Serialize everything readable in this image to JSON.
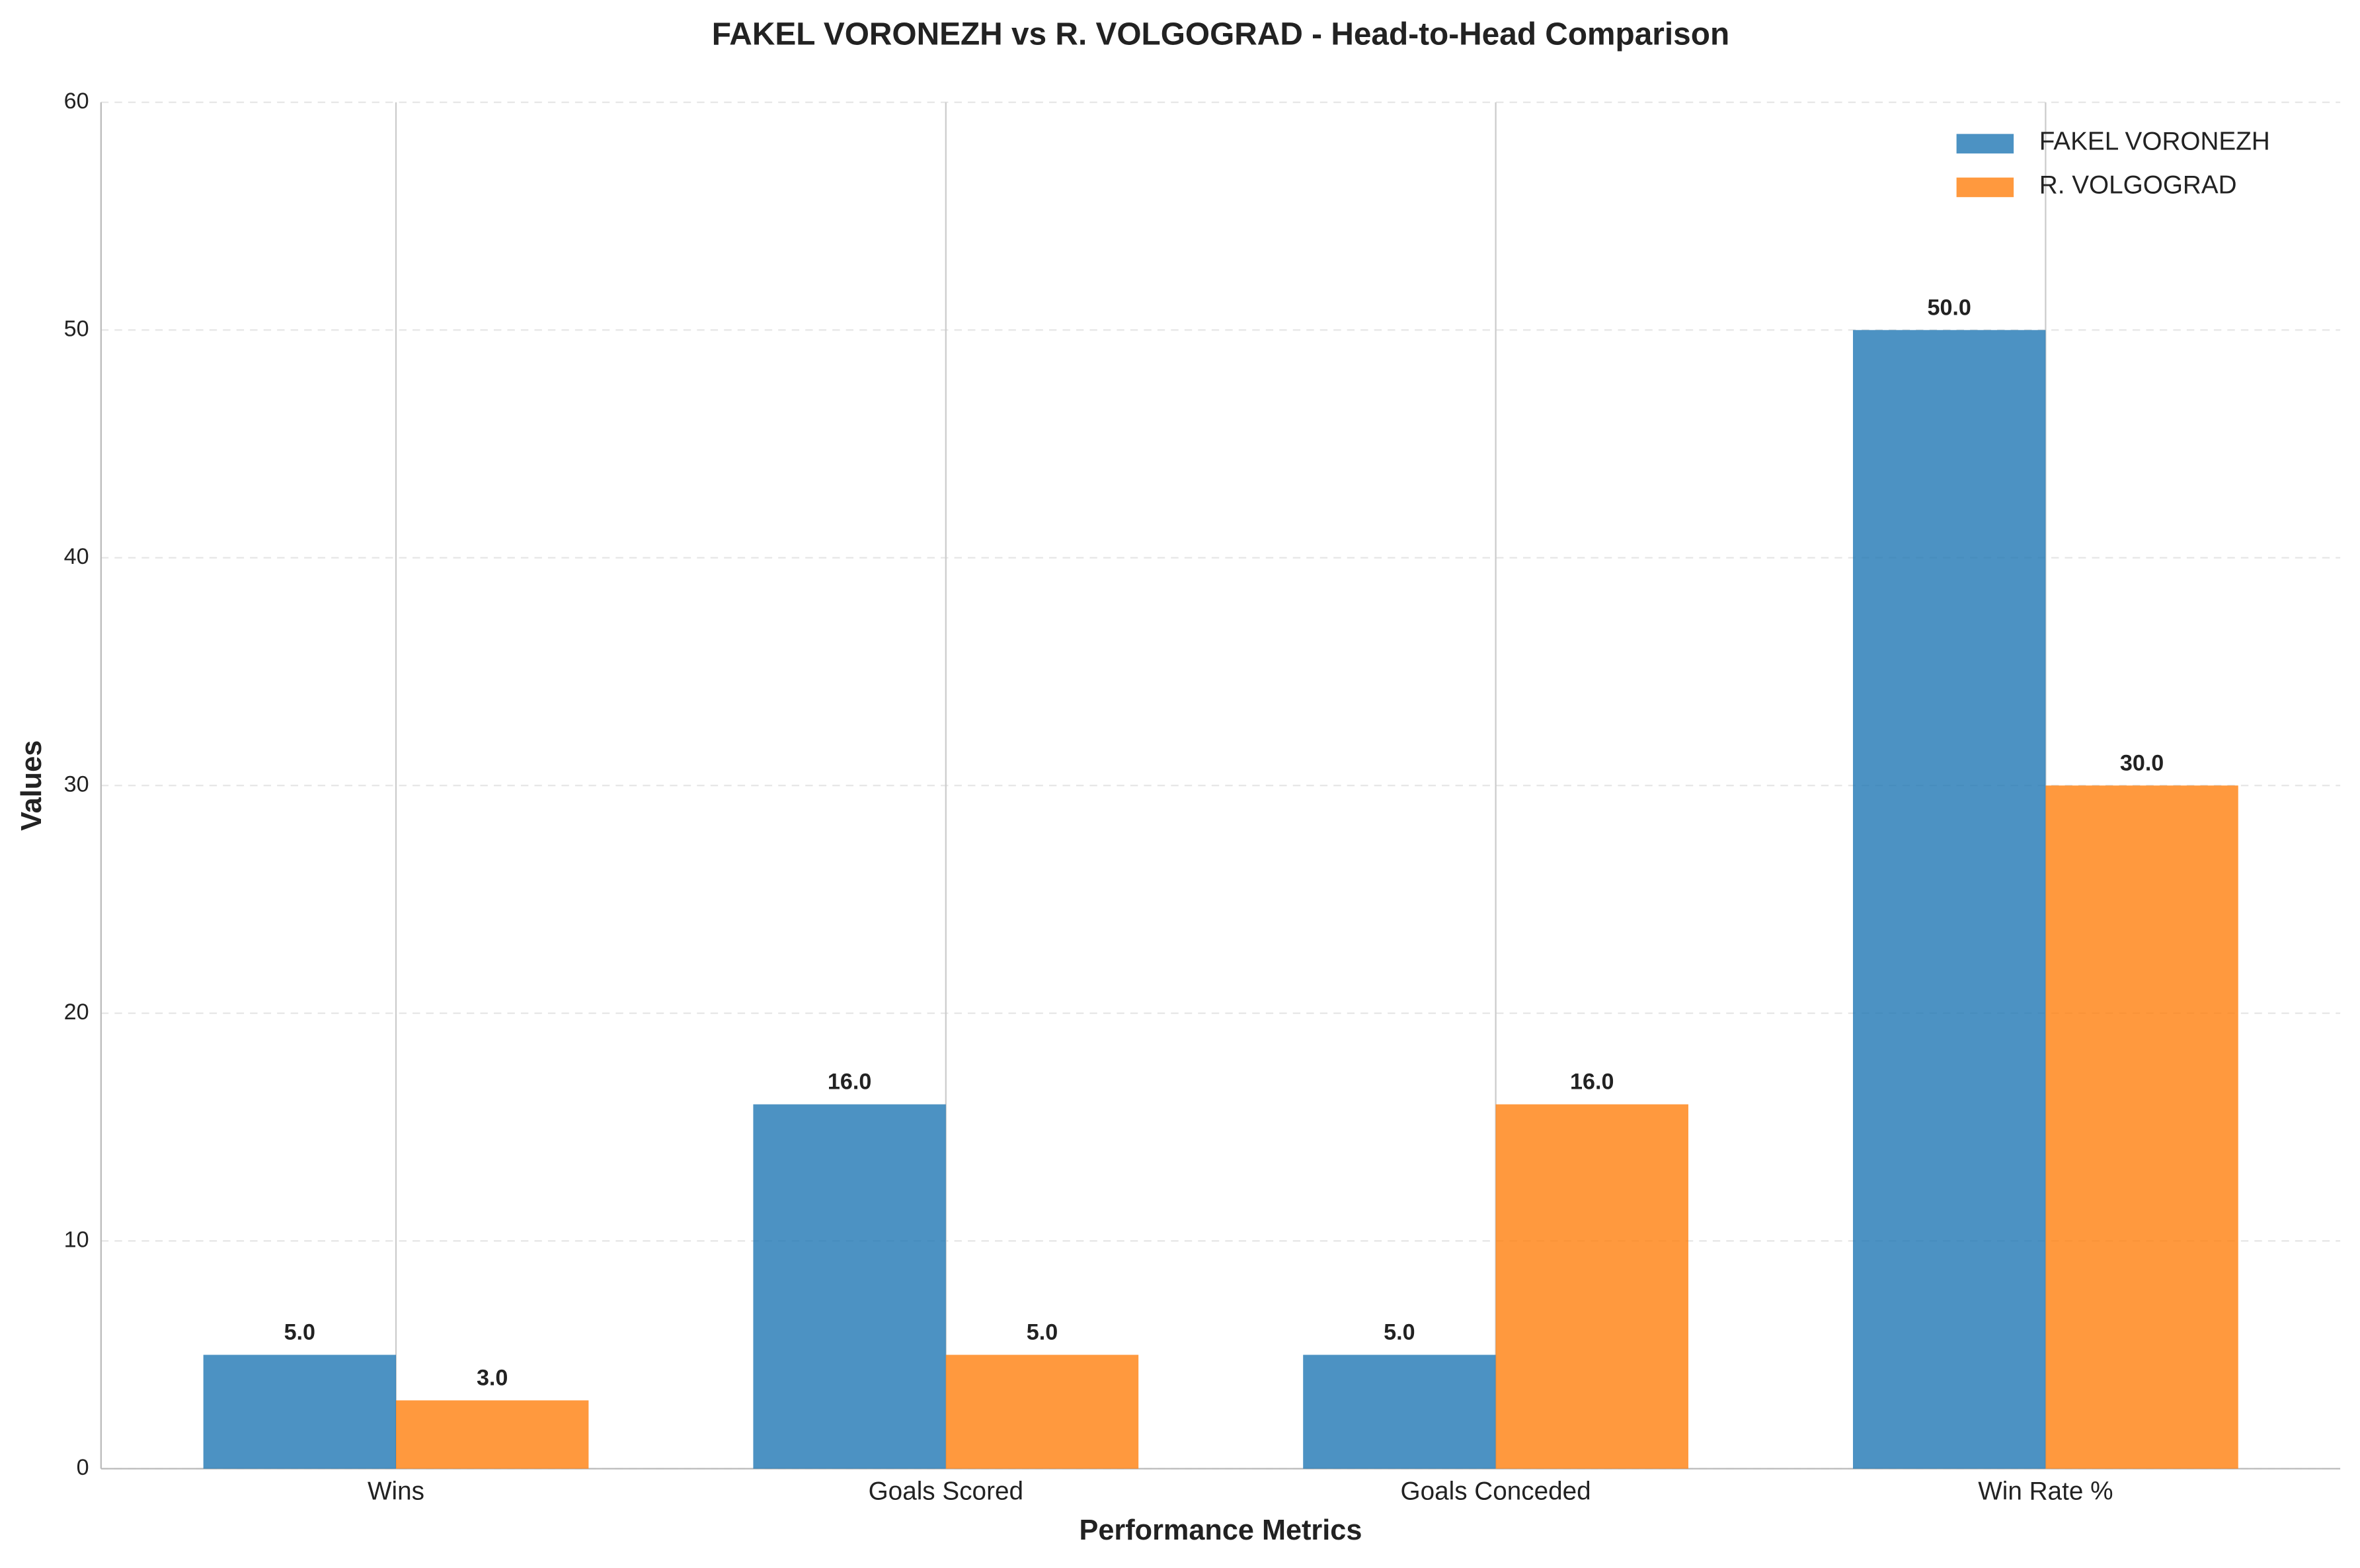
{
  "chart_data": {
    "type": "bar",
    "title": "FAKEL VORONEZH vs R. VOLGOGRAD - Head-to-Head Comparison",
    "x_label": "Performance Metrics",
    "y_label": "Values",
    "categories": [
      "Wins",
      "Goals Scored",
      "Goals Conceded",
      "Win Rate %"
    ],
    "series": [
      {
        "name": "FAKEL VORONEZH",
        "color": "#1f77b4",
        "values": [
          5,
          16,
          5,
          50
        ],
        "value_labels": [
          "5.0",
          "16.0",
          "5.0",
          "50.0"
        ]
      },
      {
        "name": "R. VOLGOGRAD",
        "color": "#ff7f0e",
        "values": [
          3,
          5,
          16,
          30
        ],
        "value_labels": [
          "3.0",
          "5.0",
          "16.0",
          "30.0"
        ]
      }
    ],
    "ylim": [
      0,
      60
    ],
    "yticks": [
      0,
      10,
      20,
      30,
      40,
      50,
      60
    ],
    "grid": true,
    "legend": "upper right"
  }
}
